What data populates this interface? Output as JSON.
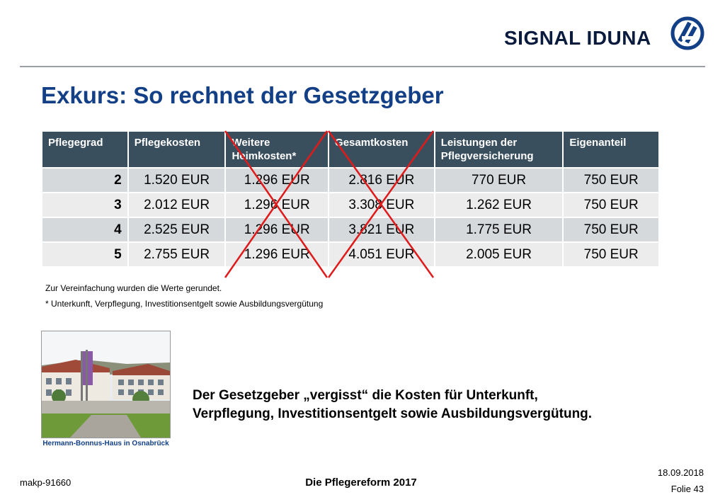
{
  "header": {
    "brand": "SIGNAL IDUNA",
    "colors": {
      "brand_navy": "#0a1b3d",
      "title_blue": "#123f86",
      "header_bg": "#3a4f5e",
      "cross_red": "#e01a1a"
    }
  },
  "slide": {
    "title": "Exkurs: So rechnet der Gesetzgeber"
  },
  "table": {
    "headers": [
      "Pflegegrad",
      "Pflegekosten",
      "Weitere Heimkosten*",
      "Gesamtkosten",
      "Leistungen der Pflegversicherung",
      "Eigenanteil"
    ],
    "rows": [
      [
        "2",
        "1.520 EUR",
        "1.296 EUR",
        "2.816 EUR",
        "770 EUR",
        "750 EUR"
      ],
      [
        "3",
        "2.012 EUR",
        "1.296 EUR",
        "3.308 EUR",
        "1.262 EUR",
        "750 EUR"
      ],
      [
        "4",
        "2.525 EUR",
        "1.296 EUR",
        "3.821 EUR",
        "1.775 EUR",
        "750 EUR"
      ],
      [
        "5",
        "2.755 EUR",
        "1.296 EUR",
        "4.051 EUR",
        "2.005 EUR",
        "750 EUR"
      ]
    ],
    "crossed_out_columns": [
      "Weitere Heimkosten*",
      "Gesamtkosten"
    ]
  },
  "notes": {
    "rounding": "Zur Vereinfachung wurden die Werte gerundet.",
    "footnote": "* Unterkunft, Verpflegung, Investitionsentgelt sowie Ausbildungsvergütung"
  },
  "photo": {
    "caption": "Hermann-Bonnus-Haus in Osnabrück"
  },
  "statement": {
    "line1": "Der Gesetzgeber „vergisst“ die Kosten für Unterkunft,",
    "line2": "Verpflegung, Investitionsentgelt sowie Ausbildungsvergütung."
  },
  "footer": {
    "code": "makp-91660",
    "center": "Die Pflegereform 2017",
    "date": "18.09.2018",
    "slide": "Folie 43"
  }
}
